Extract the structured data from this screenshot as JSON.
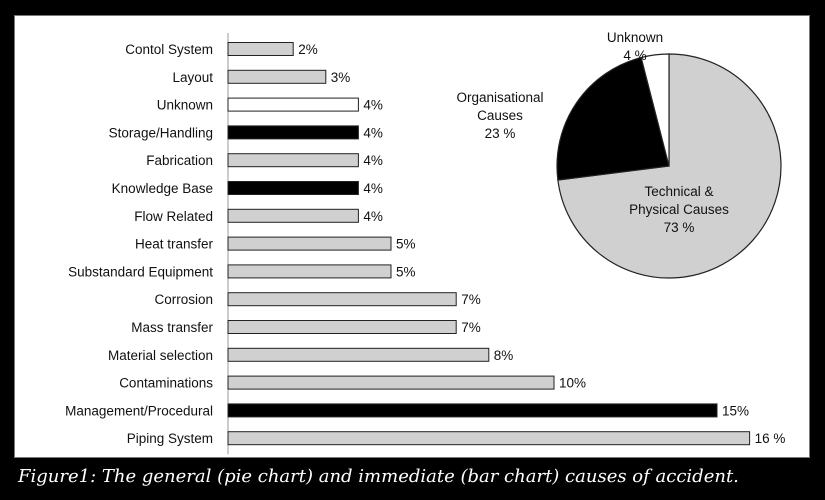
{
  "caption": "Figure1: The general (pie chart) and immediate (bar chart) causes of accident.",
  "chart_data": [
    {
      "type": "bar",
      "orientation": "horizontal",
      "categories": [
        "Contol System",
        "Layout",
        "Unknown",
        "Storage/Handling",
        "Fabrication",
        "Knowledge Base",
        "Flow Related",
        "Heat transfer",
        "Substandard Equipment",
        "Corrosion",
        "Mass transfer",
        "Material selection",
        "Contaminations",
        "Management/Procedural",
        "Piping System"
      ],
      "values": [
        2,
        3,
        4,
        4,
        4,
        4,
        4,
        5,
        5,
        7,
        7,
        8,
        10,
        15,
        16
      ],
      "data_labels": [
        "2%",
        "3%",
        "4%",
        "4%",
        "4%",
        "4%",
        "4%",
        "5%",
        "5%",
        "7%",
        "7%",
        "8%",
        "10%",
        "15%",
        "16 %"
      ],
      "bar_colors": [
        "#d0d0d0",
        "#d0d0d0",
        "#ffffff",
        "#000000",
        "#d0d0d0",
        "#000000",
        "#d0d0d0",
        "#d0d0d0",
        "#d0d0d0",
        "#d0d0d0",
        "#d0d0d0",
        "#d0d0d0",
        "#d0d0d0",
        "#000000",
        "#d0d0d0"
      ],
      "xlim": [
        0,
        16
      ],
      "title": "",
      "xlabel": "",
      "ylabel": "",
      "grid": false
    },
    {
      "type": "pie",
      "slices": [
        {
          "label": "Technical & Physical Causes",
          "value": 73,
          "value_label": "73 %",
          "color": "#d0d0d0"
        },
        {
          "label": "Organisational Causes",
          "value": 23,
          "value_label": "23 %",
          "color": "#000000"
        },
        {
          "label": "Unknown",
          "value": 4,
          "value_label": "4 %",
          "color": "#ffffff"
        }
      ],
      "title": ""
    }
  ]
}
